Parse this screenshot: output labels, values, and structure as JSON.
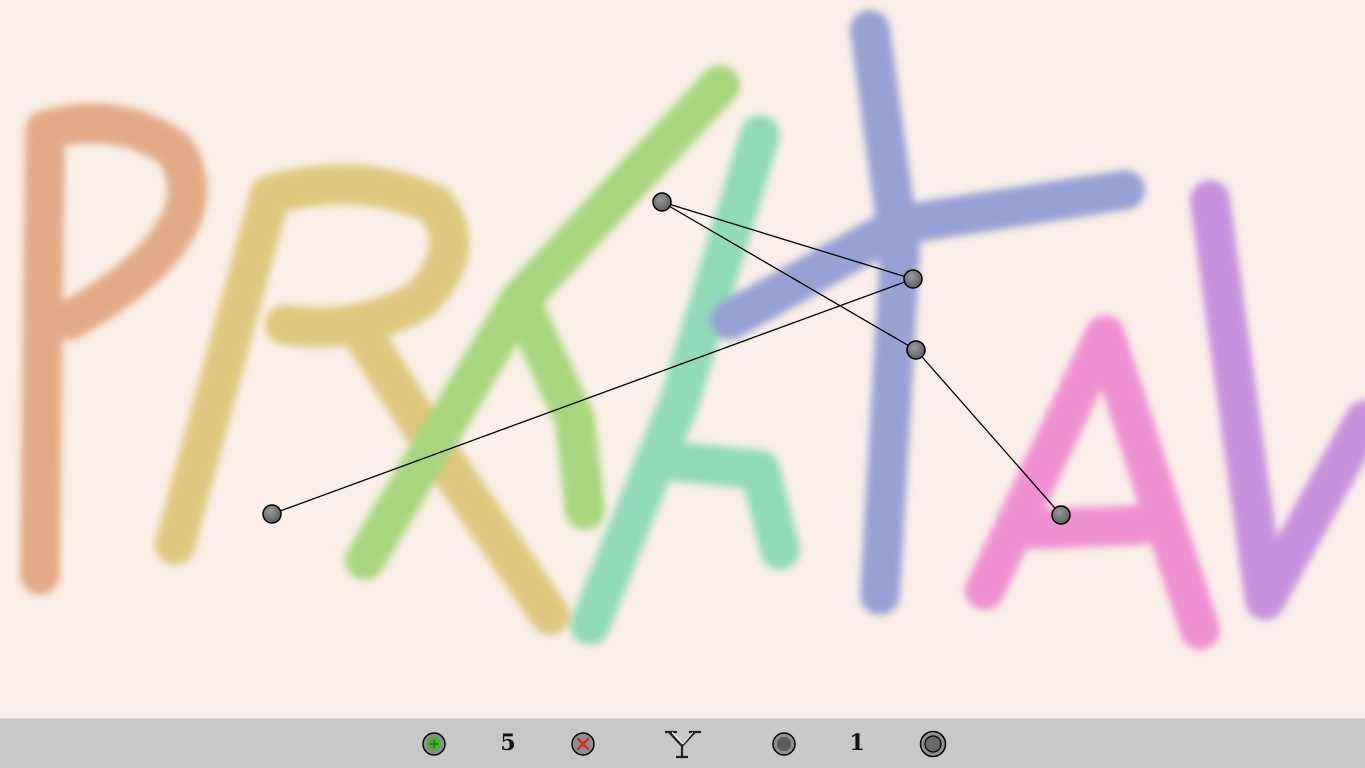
{
  "game": {
    "background_word": "PRAKTAV",
    "letter_colors": {
      "P": "#e0a47c",
      "R": "#dcc273",
      "A1": "#9fd473",
      "K": "#86d8b6",
      "T": "#8c99d2",
      "A2": "#ee86d0",
      "V": "#c286dc"
    },
    "node_color": "#7a7a7a",
    "edge_color": "#000000"
  },
  "toolbar": {
    "add_icon": "green-plus-circle",
    "add_count": "5",
    "remove_icon": "red-x-circle",
    "logo_icon": "y-glyph",
    "node_icon": "grey-node",
    "node_count": "1",
    "target_icon": "ring-node",
    "add_color": "#4caf2e",
    "remove_color": "#d42a2a"
  }
}
